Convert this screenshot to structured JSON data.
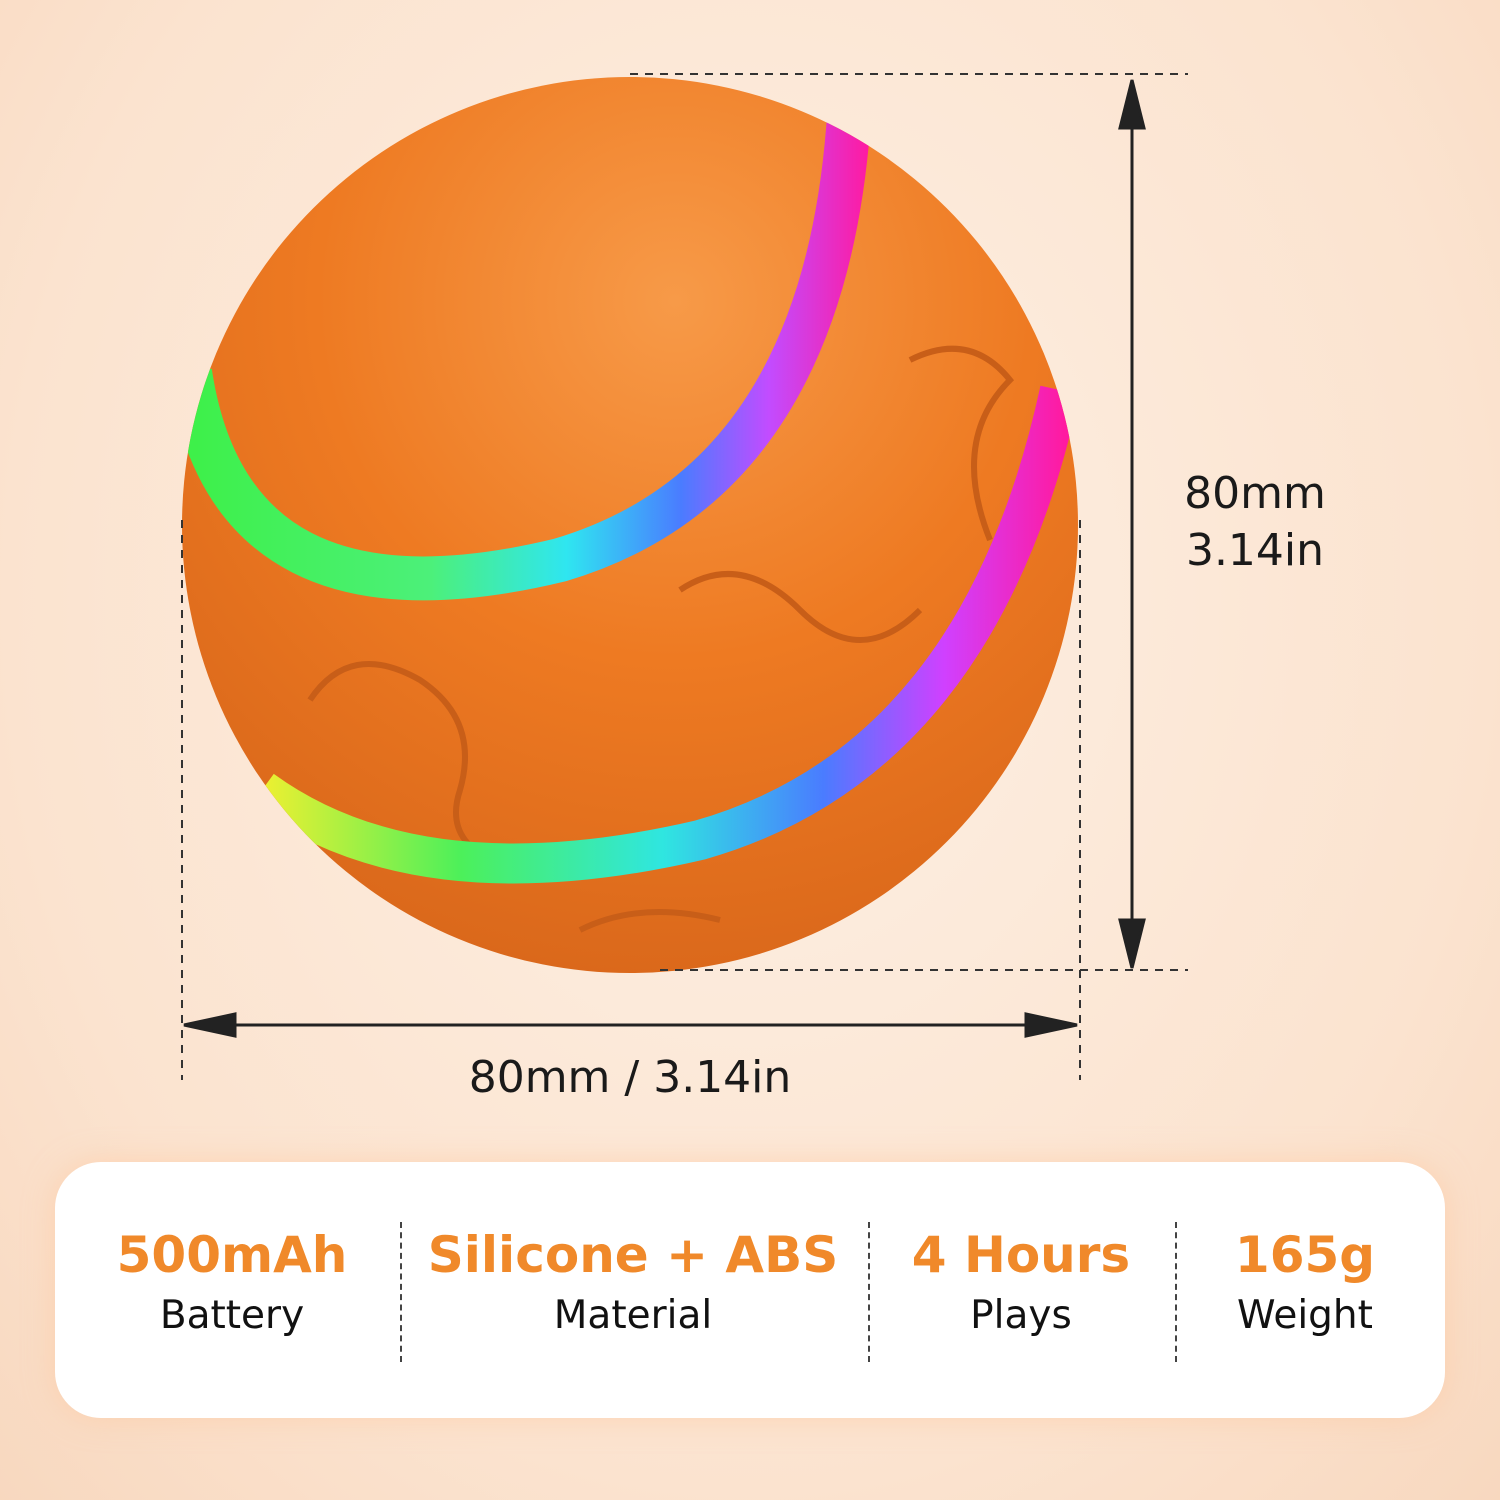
{
  "product": {
    "icon": "led-ball-toy",
    "colors": {
      "ball": "#ee7a22",
      "accent": "#f0892a"
    }
  },
  "dimensions": {
    "height_mm": "80mm",
    "height_in": "3.14in",
    "width_label": "80mm / 3.14in"
  },
  "specs": [
    {
      "value": "500mAh",
      "label": "Battery"
    },
    {
      "value": "Silicone + ABS",
      "label": "Material"
    },
    {
      "value": "4 Hours",
      "label": "Plays"
    },
    {
      "value": "165g",
      "label": "Weight"
    }
  ]
}
